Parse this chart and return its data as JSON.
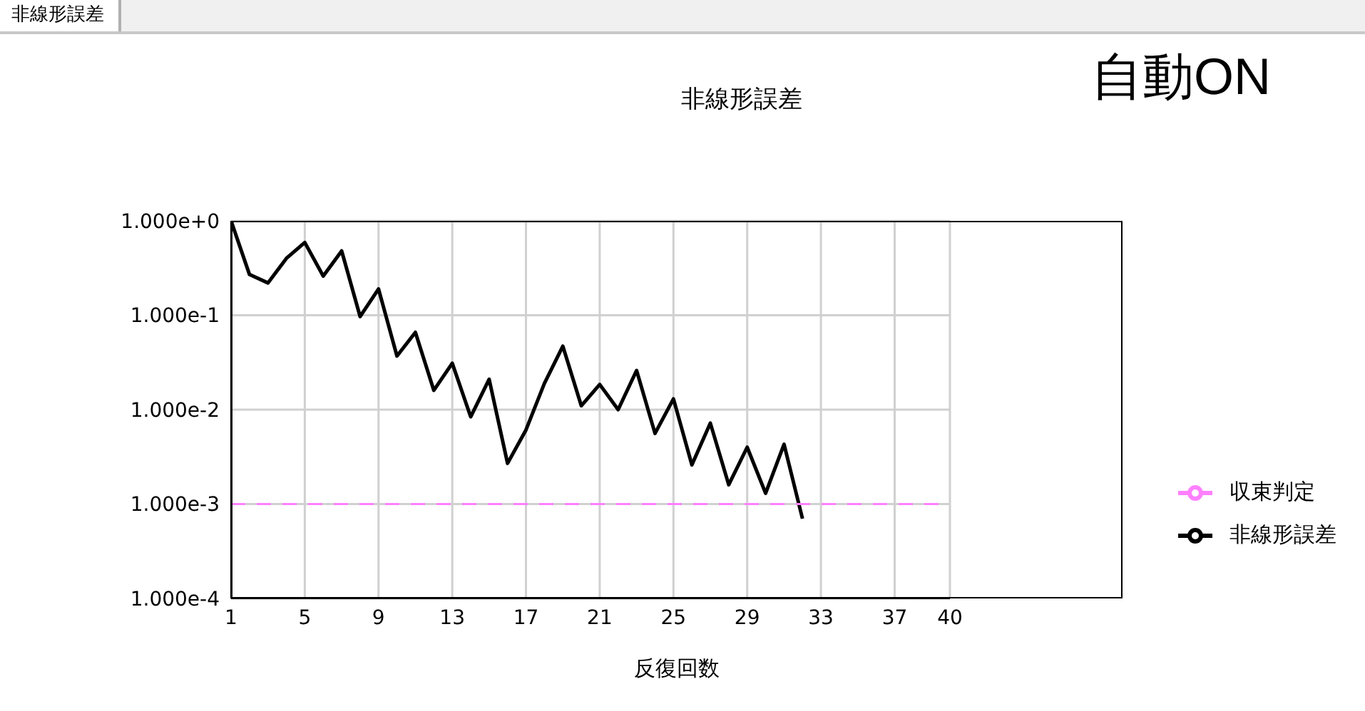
{
  "chart_data": {
    "type": "line",
    "title": "非線形誤差",
    "xlabel": "反復回数",
    "annotations": [
      "非線形誤差",
      "自動ON"
    ],
    "log": "y",
    "grid": true,
    "legend": "right",
    "marker": "none",
    "xlim": [
      1,
      40
    ],
    "xticks": [
      1,
      5,
      9,
      13,
      17,
      21,
      25,
      29,
      33,
      37,
      40
    ],
    "ylim": [
      0.0001,
      1
    ],
    "yticks": [
      {
        "value": 1,
        "label": "1.000e+0"
      },
      {
        "value": 0.1,
        "label": "1.000e-1"
      },
      {
        "value": 0.01,
        "label": "1.000e-2"
      },
      {
        "value": 0.001,
        "label": "1.000e-3"
      },
      {
        "value": 0.0001,
        "label": "1.000e-4"
      }
    ],
    "series": [
      {
        "name": "非線形誤差",
        "color": "#000000",
        "line_style": "solid",
        "x": [
          1,
          2,
          3,
          4,
          5,
          6,
          7,
          8,
          9,
          10,
          11,
          12,
          13,
          14,
          15,
          16,
          17,
          18,
          19,
          20,
          21,
          22,
          23,
          24,
          25,
          26,
          27,
          28,
          29,
          30,
          31,
          32
        ],
        "values": [
          1.0,
          0.27,
          0.22,
          0.4,
          0.59,
          0.26,
          0.48,
          0.097,
          0.19,
          0.037,
          0.066,
          0.016,
          0.031,
          0.0084,
          0.021,
          0.0027,
          0.0061,
          0.019,
          0.047,
          0.011,
          0.0185,
          0.01,
          0.026,
          0.0056,
          0.013,
          0.0026,
          0.0072,
          0.0016,
          0.004,
          0.0013,
          0.0043,
          0.0007
        ]
      },
      {
        "name": "収束判定",
        "color": "#ff80ff",
        "line_style": "dashed",
        "x": [
          1,
          40
        ],
        "values": [
          0.001,
          0.001
        ]
      }
    ]
  }
}
